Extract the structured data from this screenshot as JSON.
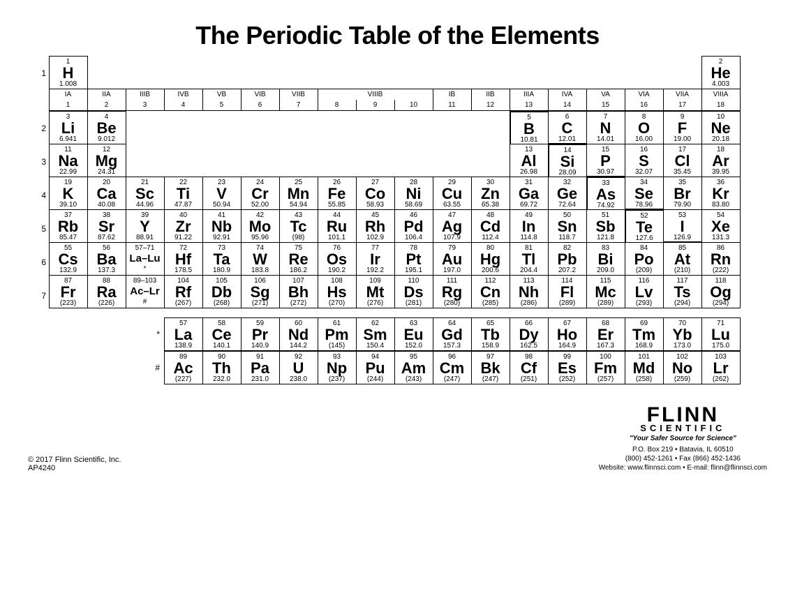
{
  "title": "The Periodic Table of the Elements",
  "copyright": "© 2017 Flinn Scientific, Inc.",
  "product_code": "AP4240",
  "logo": {
    "name": "FLINN",
    "sub": "SCIENTIFIC",
    "tagline": "\"Your Safer Source for Science\""
  },
  "address": {
    "line1": "P.O. Box 219 • Batavia, IL 60510",
    "line2": "(800) 452-1261 • Fax (866) 452-1436",
    "line3": "Website: www.flinnsci.com • E-mail: flinn@flinnsci.com"
  },
  "colors": {
    "bg": "#ffffff",
    "fg": "#000000",
    "border": "#000000"
  },
  "groups_old": [
    "IA",
    "IIA",
    "IIIB",
    "IVB",
    "VB",
    "VIB",
    "VIIB",
    "VIIIB",
    "IB",
    "IIB",
    "IIIA",
    "IVA",
    "VA",
    "VIA",
    "VIIA",
    "VIIIA"
  ],
  "groups_num": [
    "1",
    "2",
    "3",
    "4",
    "5",
    "6",
    "7",
    "8",
    "9",
    "10",
    "11",
    "12",
    "13",
    "14",
    "15",
    "16",
    "17",
    "18"
  ],
  "periods": [
    "1",
    "2",
    "3",
    "4",
    "5",
    "6",
    "7"
  ],
  "f_labels": [
    "*",
    "#"
  ],
  "elements_main": [
    [
      {
        "n": "1",
        "s": "H",
        "m": "1.008"
      },
      null,
      null,
      null,
      null,
      null,
      null,
      null,
      null,
      null,
      null,
      null,
      null,
      null,
      null,
      null,
      null,
      {
        "n": "2",
        "s": "He",
        "m": "4.003"
      }
    ],
    [
      {
        "n": "3",
        "s": "Li",
        "m": "6.941"
      },
      {
        "n": "4",
        "s": "Be",
        "m": "9.012"
      },
      null,
      null,
      null,
      null,
      null,
      null,
      null,
      null,
      null,
      null,
      {
        "n": "5",
        "s": "B",
        "m": "10.81"
      },
      {
        "n": "6",
        "s": "C",
        "m": "12.01"
      },
      {
        "n": "7",
        "s": "N",
        "m": "14.01"
      },
      {
        "n": "8",
        "s": "O",
        "m": "16.00"
      },
      {
        "n": "9",
        "s": "F",
        "m": "19.00"
      },
      {
        "n": "10",
        "s": "Ne",
        "m": "20.18"
      }
    ],
    [
      {
        "n": "11",
        "s": "Na",
        "m": "22.99"
      },
      {
        "n": "12",
        "s": "Mg",
        "m": "24.31"
      },
      null,
      null,
      null,
      null,
      null,
      null,
      null,
      null,
      null,
      null,
      {
        "n": "13",
        "s": "Al",
        "m": "26.98"
      },
      {
        "n": "14",
        "s": "Si",
        "m": "28.09"
      },
      {
        "n": "15",
        "s": "P",
        "m": "30.97"
      },
      {
        "n": "16",
        "s": "S",
        "m": "32.07"
      },
      {
        "n": "17",
        "s": "Cl",
        "m": "35.45"
      },
      {
        "n": "18",
        "s": "Ar",
        "m": "39.95"
      }
    ],
    [
      {
        "n": "19",
        "s": "K",
        "m": "39.10"
      },
      {
        "n": "20",
        "s": "Ca",
        "m": "40.08"
      },
      {
        "n": "21",
        "s": "Sc",
        "m": "44.96"
      },
      {
        "n": "22",
        "s": "Ti",
        "m": "47.87"
      },
      {
        "n": "23",
        "s": "V",
        "m": "50.94"
      },
      {
        "n": "24",
        "s": "Cr",
        "m": "52.00"
      },
      {
        "n": "25",
        "s": "Mn",
        "m": "54.94"
      },
      {
        "n": "26",
        "s": "Fe",
        "m": "55.85"
      },
      {
        "n": "27",
        "s": "Co",
        "m": "58.93"
      },
      {
        "n": "28",
        "s": "Ni",
        "m": "58.69"
      },
      {
        "n": "29",
        "s": "Cu",
        "m": "63.55"
      },
      {
        "n": "30",
        "s": "Zn",
        "m": "65.38"
      },
      {
        "n": "31",
        "s": "Ga",
        "m": "69.72"
      },
      {
        "n": "32",
        "s": "Ge",
        "m": "72.64"
      },
      {
        "n": "33",
        "s": "As",
        "m": "74.92"
      },
      {
        "n": "34",
        "s": "Se",
        "m": "78.96"
      },
      {
        "n": "35",
        "s": "Br",
        "m": "79.90"
      },
      {
        "n": "36",
        "s": "Kr",
        "m": "83.80"
      }
    ],
    [
      {
        "n": "37",
        "s": "Rb",
        "m": "85.47"
      },
      {
        "n": "38",
        "s": "Sr",
        "m": "87.62"
      },
      {
        "n": "39",
        "s": "Y",
        "m": "88.91"
      },
      {
        "n": "40",
        "s": "Zr",
        "m": "91.22"
      },
      {
        "n": "41",
        "s": "Nb",
        "m": "92.91"
      },
      {
        "n": "42",
        "s": "Mo",
        "m": "95.96"
      },
      {
        "n": "43",
        "s": "Tc",
        "m": "(98)"
      },
      {
        "n": "44",
        "s": "Ru",
        "m": "101.1"
      },
      {
        "n": "45",
        "s": "Rh",
        "m": "102.9"
      },
      {
        "n": "46",
        "s": "Pd",
        "m": "106.4"
      },
      {
        "n": "47",
        "s": "Ag",
        "m": "107.9"
      },
      {
        "n": "48",
        "s": "Cd",
        "m": "112.4"
      },
      {
        "n": "49",
        "s": "In",
        "m": "114.8"
      },
      {
        "n": "50",
        "s": "Sn",
        "m": "118.7"
      },
      {
        "n": "51",
        "s": "Sb",
        "m": "121.8"
      },
      {
        "n": "52",
        "s": "Te",
        "m": "127.6"
      },
      {
        "n": "53",
        "s": "I",
        "m": "126.9"
      },
      {
        "n": "54",
        "s": "Xe",
        "m": "131.3"
      }
    ],
    [
      {
        "n": "55",
        "s": "Cs",
        "m": "132.9"
      },
      {
        "n": "56",
        "s": "Ba",
        "m": "137.3"
      },
      {
        "n": "57–71",
        "s": "La–Lu",
        "m": "*",
        "small": true
      },
      {
        "n": "72",
        "s": "Hf",
        "m": "178.5"
      },
      {
        "n": "73",
        "s": "Ta",
        "m": "180.9"
      },
      {
        "n": "74",
        "s": "W",
        "m": "183.8"
      },
      {
        "n": "75",
        "s": "Re",
        "m": "186.2"
      },
      {
        "n": "76",
        "s": "Os",
        "m": "190.2"
      },
      {
        "n": "77",
        "s": "Ir",
        "m": "192.2"
      },
      {
        "n": "78",
        "s": "Pt",
        "m": "195.1"
      },
      {
        "n": "79",
        "s": "Au",
        "m": "197.0"
      },
      {
        "n": "80",
        "s": "Hg",
        "m": "200.6"
      },
      {
        "n": "81",
        "s": "Tl",
        "m": "204.4"
      },
      {
        "n": "82",
        "s": "Pb",
        "m": "207.2"
      },
      {
        "n": "83",
        "s": "Bi",
        "m": "209.0"
      },
      {
        "n": "84",
        "s": "Po",
        "m": "(209)"
      },
      {
        "n": "85",
        "s": "At",
        "m": "(210)"
      },
      {
        "n": "86",
        "s": "Rn",
        "m": "(222)"
      }
    ],
    [
      {
        "n": "87",
        "s": "Fr",
        "m": "(223)"
      },
      {
        "n": "88",
        "s": "Ra",
        "m": "(226)"
      },
      {
        "n": "89–103",
        "s": "Ac–Lr",
        "m": "#",
        "small": true
      },
      {
        "n": "104",
        "s": "Rf",
        "m": "(267)"
      },
      {
        "n": "105",
        "s": "Db",
        "m": "(268)"
      },
      {
        "n": "106",
        "s": "Sg",
        "m": "(271)"
      },
      {
        "n": "107",
        "s": "Bh",
        "m": "(272)"
      },
      {
        "n": "108",
        "s": "Hs",
        "m": "(270)"
      },
      {
        "n": "109",
        "s": "Mt",
        "m": "(276)"
      },
      {
        "n": "110",
        "s": "Ds",
        "m": "(281)"
      },
      {
        "n": "111",
        "s": "Rg",
        "m": "(280)"
      },
      {
        "n": "112",
        "s": "Cn",
        "m": "(285)"
      },
      {
        "n": "113",
        "s": "Nh",
        "m": "(286)"
      },
      {
        "n": "114",
        "s": "Fl",
        "m": "(289)"
      },
      {
        "n": "115",
        "s": "Mc",
        "m": "(289)"
      },
      {
        "n": "116",
        "s": "Lv",
        "m": "(293)"
      },
      {
        "n": "117",
        "s": "Ts",
        "m": "(294)"
      },
      {
        "n": "118",
        "s": "Og",
        "m": "(294)"
      }
    ]
  ],
  "elements_f": [
    [
      {
        "n": "57",
        "s": "La",
        "m": "138.9"
      },
      {
        "n": "58",
        "s": "Ce",
        "m": "140.1"
      },
      {
        "n": "59",
        "s": "Pr",
        "m": "140.9"
      },
      {
        "n": "60",
        "s": "Nd",
        "m": "144.2"
      },
      {
        "n": "61",
        "s": "Pm",
        "m": "(145)"
      },
      {
        "n": "62",
        "s": "Sm",
        "m": "150.4"
      },
      {
        "n": "63",
        "s": "Eu",
        "m": "152.0"
      },
      {
        "n": "64",
        "s": "Gd",
        "m": "157.3"
      },
      {
        "n": "65",
        "s": "Tb",
        "m": "158.9"
      },
      {
        "n": "66",
        "s": "Dy",
        "m": "162.5"
      },
      {
        "n": "67",
        "s": "Ho",
        "m": "164.9"
      },
      {
        "n": "68",
        "s": "Er",
        "m": "167.3"
      },
      {
        "n": "69",
        "s": "Tm",
        "m": "168.9"
      },
      {
        "n": "70",
        "s": "Yb",
        "m": "173.0"
      },
      {
        "n": "71",
        "s": "Lu",
        "m": "175.0"
      }
    ],
    [
      {
        "n": "89",
        "s": "Ac",
        "m": "(227)"
      },
      {
        "n": "90",
        "s": "Th",
        "m": "232.0"
      },
      {
        "n": "91",
        "s": "Pa",
        "m": "231.0"
      },
      {
        "n": "92",
        "s": "U",
        "m": "238.0"
      },
      {
        "n": "93",
        "s": "Np",
        "m": "(237)"
      },
      {
        "n": "94",
        "s": "Pu",
        "m": "(244)"
      },
      {
        "n": "95",
        "s": "Am",
        "m": "(243)"
      },
      {
        "n": "96",
        "s": "Cm",
        "m": "(247)"
      },
      {
        "n": "97",
        "s": "Bk",
        "m": "(247)"
      },
      {
        "n": "98",
        "s": "Cf",
        "m": "(251)"
      },
      {
        "n": "99",
        "s": "Es",
        "m": "(252)"
      },
      {
        "n": "100",
        "s": "Fm",
        "m": "(257)"
      },
      {
        "n": "101",
        "s": "Md",
        "m": "(258)"
      },
      {
        "n": "102",
        "s": "No",
        "m": "(259)"
      },
      {
        "n": "103",
        "s": "Lr",
        "m": "(262)"
      }
    ]
  ],
  "heavy_border_cells": {
    "1_12": "hb-l hb-t",
    "1_13": "hb-b",
    "2_13": "hb-l hb-t",
    "2_14": "hb-b",
    "3_14": "hb-l hb-t",
    "3_15": "hb-b",
    "4_15": "hb-l hb-t",
    "4_16": "hb-b"
  }
}
